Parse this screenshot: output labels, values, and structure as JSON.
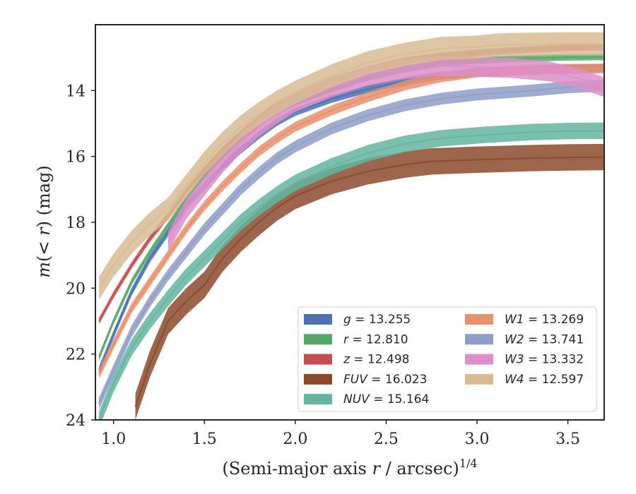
{
  "chart_data": {
    "type": "line",
    "xlabel": "(Semi-major axis r / arcsec)",
    "xlabel_parts": {
      "pre": "(Semi-major axis ",
      "var": "r",
      "post": " / arcsec)",
      "sup": "1/4"
    },
    "ylabel": "m(< r) (mag)",
    "ylabel_parts": {
      "m": "m",
      "open": "(",
      "lt": "< ",
      "r": "r",
      "close": ")",
      "unit": " (mag)"
    },
    "xlim": [
      0.9,
      3.7
    ],
    "ylim": [
      24,
      12.0
    ],
    "y_inverted": true,
    "x_ticks": [
      "1.0",
      "1.5",
      "2.0",
      "2.5",
      "3.0",
      "3.5"
    ],
    "y_ticks": [
      "14",
      "16",
      "18",
      "20",
      "22",
      "24"
    ],
    "legend_position": "lower-right",
    "series": [
      {
        "name": "g",
        "value": "13.255",
        "color": "#4c72b0",
        "band": 0.12,
        "points": [
          [
            0.92,
            22.5
          ],
          [
            1.0,
            21.4
          ],
          [
            1.1,
            20.1
          ],
          [
            1.2,
            19.1
          ],
          [
            1.3,
            18.3
          ],
          [
            1.4,
            17.5
          ],
          [
            1.5,
            16.9
          ],
          [
            1.6,
            16.3
          ],
          [
            1.7,
            15.8
          ],
          [
            1.8,
            15.35
          ],
          [
            1.9,
            14.95
          ],
          [
            2.0,
            14.65
          ],
          [
            2.2,
            14.25
          ],
          [
            2.4,
            13.95
          ],
          [
            2.6,
            13.72
          ],
          [
            2.8,
            13.55
          ],
          [
            3.0,
            13.45
          ],
          [
            3.3,
            13.38
          ],
          [
            3.5,
            13.33
          ],
          [
            3.7,
            13.32
          ]
        ]
      },
      {
        "name": "r",
        "value": "12.810",
        "color": "#55a868",
        "band": 0.1,
        "points": [
          [
            0.92,
            22.1
          ],
          [
            1.0,
            21.0
          ],
          [
            1.1,
            19.8
          ],
          [
            1.2,
            18.9
          ],
          [
            1.3,
            18.1
          ],
          [
            1.4,
            17.3
          ],
          [
            1.5,
            16.6
          ],
          [
            1.6,
            16.0
          ],
          [
            1.7,
            15.45
          ],
          [
            1.8,
            15.0
          ],
          [
            1.9,
            14.65
          ],
          [
            2.0,
            14.35
          ],
          [
            2.2,
            13.95
          ],
          [
            2.4,
            13.6
          ],
          [
            2.6,
            13.35
          ],
          [
            2.8,
            13.18
          ],
          [
            3.0,
            13.08
          ],
          [
            3.3,
            13.02
          ],
          [
            3.5,
            12.99
          ],
          [
            3.7,
            12.98
          ]
        ]
      },
      {
        "name": "z",
        "value": "12.498",
        "color": "#c44e52",
        "band": 0.1,
        "points": [
          [
            0.92,
            21.0
          ],
          [
            1.0,
            20.2
          ],
          [
            1.1,
            19.3
          ],
          [
            1.2,
            18.5
          ],
          [
            1.3,
            17.8
          ],
          [
            1.4,
            17.05
          ],
          [
            1.5,
            16.4
          ],
          [
            1.6,
            15.8
          ],
          [
            1.7,
            15.3
          ],
          [
            1.8,
            14.85
          ],
          [
            1.9,
            14.45
          ],
          [
            2.0,
            14.15
          ],
          [
            2.2,
            13.7
          ],
          [
            2.4,
            13.35
          ],
          [
            2.6,
            13.1
          ],
          [
            2.8,
            12.95
          ],
          [
            3.0,
            12.85
          ],
          [
            3.3,
            12.75
          ],
          [
            3.5,
            12.7
          ],
          [
            3.7,
            12.68
          ]
        ]
      },
      {
        "name": "FUV",
        "value": "16.023",
        "color": "#8c4a2b",
        "band": 0.4,
        "points": [
          [
            1.12,
            23.6
          ],
          [
            1.2,
            22.3
          ],
          [
            1.3,
            21.0
          ],
          [
            1.4,
            20.4
          ],
          [
            1.5,
            19.9
          ],
          [
            1.6,
            19.1
          ],
          [
            1.7,
            18.5
          ],
          [
            1.8,
            18.0
          ],
          [
            1.9,
            17.55
          ],
          [
            2.0,
            17.2
          ],
          [
            2.2,
            16.75
          ],
          [
            2.4,
            16.45
          ],
          [
            2.6,
            16.25
          ],
          [
            2.75,
            16.15
          ],
          [
            3.0,
            16.1
          ],
          [
            3.3,
            16.05
          ],
          [
            3.5,
            16.03
          ],
          [
            3.7,
            16.02
          ]
        ]
      },
      {
        "name": "NUV",
        "value": "15.164",
        "color": "#64b5a0",
        "band": 0.25,
        "points": [
          [
            0.92,
            24.0
          ],
          [
            1.0,
            22.9
          ],
          [
            1.1,
            21.8
          ],
          [
            1.2,
            21.0
          ],
          [
            1.3,
            20.3
          ],
          [
            1.4,
            19.65
          ],
          [
            1.5,
            19.1
          ],
          [
            1.6,
            18.55
          ],
          [
            1.7,
            18.0
          ],
          [
            1.8,
            17.55
          ],
          [
            1.9,
            17.15
          ],
          [
            2.0,
            16.8
          ],
          [
            2.2,
            16.3
          ],
          [
            2.4,
            15.9
          ],
          [
            2.6,
            15.62
          ],
          [
            2.8,
            15.45
          ],
          [
            3.03,
            15.35
          ],
          [
            3.3,
            15.26
          ],
          [
            3.5,
            15.23
          ],
          [
            3.7,
            15.22
          ]
        ]
      },
      {
        "name": "W1",
        "value": "13.269",
        "color": "#e8916c",
        "band": 0.15,
        "points": [
          [
            0.92,
            22.6
          ],
          [
            1.0,
            21.7
          ],
          [
            1.1,
            20.6
          ],
          [
            1.2,
            19.8
          ],
          [
            1.3,
            19.0
          ],
          [
            1.4,
            18.2
          ],
          [
            1.5,
            17.5
          ],
          [
            1.6,
            16.9
          ],
          [
            1.7,
            16.35
          ],
          [
            1.8,
            15.85
          ],
          [
            1.9,
            15.45
          ],
          [
            2.0,
            15.1
          ],
          [
            2.2,
            14.6
          ],
          [
            2.4,
            14.2
          ],
          [
            2.6,
            13.85
          ],
          [
            2.8,
            13.6
          ],
          [
            3.0,
            13.45
          ],
          [
            3.3,
            13.37
          ],
          [
            3.5,
            13.34
          ],
          [
            3.7,
            13.33
          ]
        ]
      },
      {
        "name": "W2",
        "value": "13.741",
        "color": "#8f9dc7",
        "band": 0.18,
        "points": [
          [
            0.92,
            23.5
          ],
          [
            1.0,
            22.5
          ],
          [
            1.1,
            21.3
          ],
          [
            1.2,
            20.4
          ],
          [
            1.3,
            19.6
          ],
          [
            1.4,
            18.9
          ],
          [
            1.5,
            18.2
          ],
          [
            1.6,
            17.6
          ],
          [
            1.7,
            17.0
          ],
          [
            1.8,
            16.5
          ],
          [
            1.9,
            16.05
          ],
          [
            2.0,
            15.7
          ],
          [
            2.2,
            15.15
          ],
          [
            2.4,
            14.75
          ],
          [
            2.6,
            14.45
          ],
          [
            2.8,
            14.25
          ],
          [
            3.0,
            14.12
          ],
          [
            3.3,
            14.0
          ],
          [
            3.5,
            13.9
          ],
          [
            3.7,
            13.85
          ]
        ]
      },
      {
        "name": "W3",
        "value": "13.332",
        "color": "#dd8fc8",
        "band": 0.3,
        "points": [
          [
            1.3,
            18.6
          ],
          [
            1.4,
            17.6
          ],
          [
            1.5,
            16.9
          ],
          [
            1.6,
            16.2
          ],
          [
            1.7,
            15.6
          ],
          [
            1.8,
            15.1
          ],
          [
            1.9,
            14.7
          ],
          [
            2.0,
            14.35
          ],
          [
            2.2,
            13.9
          ],
          [
            2.4,
            13.55
          ],
          [
            2.6,
            13.35
          ],
          [
            2.8,
            13.25
          ],
          [
            3.0,
            13.28
          ],
          [
            3.2,
            13.32
          ],
          [
            3.4,
            13.42
          ],
          [
            3.5,
            13.55
          ],
          [
            3.6,
            13.7
          ],
          [
            3.7,
            13.9
          ]
        ]
      },
      {
        "name": "W4",
        "value": "12.597",
        "color": "#d8bb94",
        "band": 0.35,
        "points": [
          [
            0.92,
            20.0
          ],
          [
            1.0,
            19.3
          ],
          [
            1.1,
            18.6
          ],
          [
            1.2,
            18.05
          ],
          [
            1.3,
            17.6
          ],
          [
            1.4,
            16.9
          ],
          [
            1.5,
            16.2
          ],
          [
            1.6,
            15.6
          ],
          [
            1.7,
            15.1
          ],
          [
            1.8,
            14.7
          ],
          [
            1.9,
            14.35
          ],
          [
            2.0,
            14.05
          ],
          [
            2.2,
            13.55
          ],
          [
            2.4,
            13.15
          ],
          [
            2.6,
            12.9
          ],
          [
            2.8,
            12.72
          ],
          [
            3.0,
            12.68
          ],
          [
            3.1,
            12.62
          ],
          [
            3.2,
            12.6
          ],
          [
            3.5,
            12.58
          ],
          [
            3.7,
            12.58
          ]
        ]
      }
    ]
  }
}
